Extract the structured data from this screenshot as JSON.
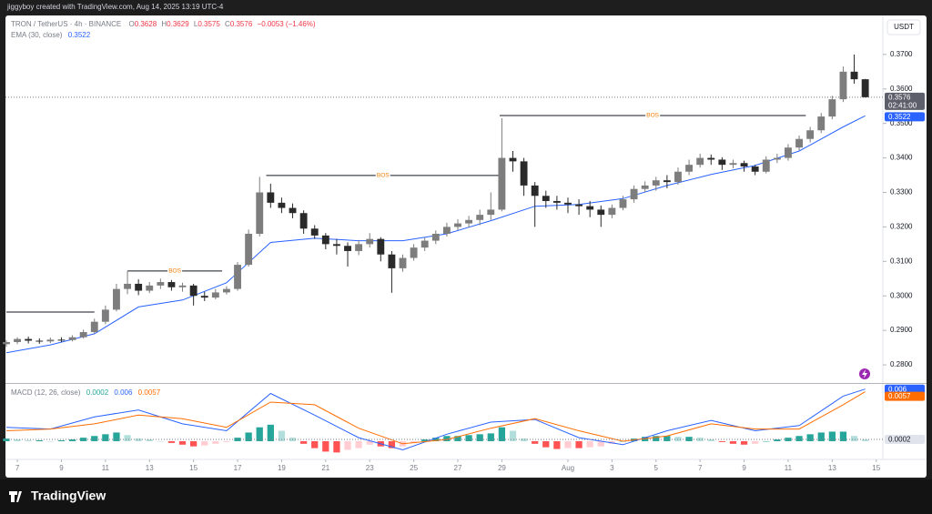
{
  "chart_data": {
    "type": "candlestick",
    "credit": "jiggyboy created with TradingView.com, Aug 14, 2025 13:19 UTC-4",
    "brand": "TradingView",
    "currency": "USDT",
    "symbol": "TRON / TetherUS · 4h · BINANCE",
    "ohlc_labels": [
      "O",
      "H",
      "L",
      "C"
    ],
    "change": "−0.0053 (−1.46%)",
    "countdown": "02:41:00",
    "up_color": "#7d7d7d",
    "down_color": "#2a2a2a",
    "xlim": [
      6.46,
      46.3
    ],
    "xticks": [
      7,
      9,
      11,
      13,
      15,
      17,
      19,
      21,
      23,
      25,
      27,
      29,
      {
        "value": 32,
        "label": "Aug"
      },
      {
        "value": 34,
        "label": "3"
      },
      {
        "value": 36,
        "label": "5"
      },
      {
        "value": 38,
        "label": "7"
      },
      {
        "value": 40,
        "label": "9"
      },
      {
        "value": 42,
        "label": "11"
      },
      {
        "value": 44,
        "label": "13"
      },
      {
        "value": 46,
        "label": "15"
      }
    ],
    "ylim": [
      0.275,
      0.3813
    ],
    "yticks": [
      {
        "value": 0.28,
        "label": "0.2800"
      },
      {
        "value": 0.29,
        "label": "0.2900"
      },
      {
        "value": 0.3,
        "label": "0.3000"
      },
      {
        "value": 0.31,
        "label": "0.3100"
      },
      {
        "value": 0.32,
        "label": "0.3200"
      },
      {
        "value": 0.33,
        "label": "0.3300"
      },
      {
        "value": 0.34,
        "label": "0.3400"
      },
      {
        "value": 0.35,
        "label": "0.3500"
      },
      {
        "value": 0.36,
        "label": "0.3600"
      },
      {
        "value": 0.37,
        "label": "0.3700"
      }
    ],
    "candles": {
      "x": [
        6.5,
        7,
        7.5,
        8,
        8.5,
        9,
        9.5,
        10,
        10.5,
        11,
        11.5,
        12,
        12.5,
        13,
        13.5,
        14,
        14.5,
        15,
        15.5,
        16,
        16.5,
        17,
        17.5,
        18,
        18.5,
        19,
        19.5,
        20,
        20.5,
        21,
        21.5,
        22,
        22.5,
        23,
        23.5,
        24,
        24.5,
        25,
        25.5,
        26,
        26.5,
        27,
        27.5,
        28,
        28.5,
        29,
        29.5,
        30,
        30.5,
        31,
        31.5,
        32,
        32.5,
        33,
        33.5,
        34,
        34.5,
        35,
        35.5,
        36,
        36.5,
        37,
        37.5,
        38,
        38.5,
        39,
        39.5,
        40,
        40.5,
        41,
        41.5,
        42,
        42.5,
        43,
        43.5,
        44,
        44.5,
        45,
        45.5
      ],
      "open": [
        0.286,
        0.2866,
        0.2875,
        0.287,
        0.2868,
        0.2873,
        0.2872,
        0.288,
        0.2895,
        0.2925,
        0.296,
        0.302,
        0.3035,
        0.3015,
        0.303,
        0.304,
        0.3025,
        0.303,
        0.3,
        0.2995,
        0.301,
        0.302,
        0.309,
        0.318,
        0.33,
        0.327,
        0.3255,
        0.324,
        0.3195,
        0.3175,
        0.315,
        0.3145,
        0.313,
        0.315,
        0.3165,
        0.312,
        0.308,
        0.311,
        0.314,
        0.316,
        0.318,
        0.32,
        0.321,
        0.322,
        0.3235,
        0.325,
        0.34,
        0.339,
        0.332,
        0.329,
        0.3275,
        0.327,
        0.3265,
        0.326,
        0.325,
        0.3235,
        0.3255,
        0.328,
        0.331,
        0.332,
        0.3335,
        0.333,
        0.336,
        0.338,
        0.34,
        0.3395,
        0.338,
        0.3385,
        0.3375,
        0.336,
        0.3395,
        0.34,
        0.343,
        0.3455,
        0.348,
        0.352,
        0.357,
        0.365,
        0.3628
      ],
      "high": [
        0.2872,
        0.288,
        0.2882,
        0.2877,
        0.2879,
        0.288,
        0.2886,
        0.2902,
        0.2934,
        0.2972,
        0.3035,
        0.3072,
        0.3048,
        0.304,
        0.305,
        0.3046,
        0.3038,
        0.3035,
        0.3012,
        0.302,
        0.3028,
        0.3098,
        0.3192,
        0.3345,
        0.3325,
        0.3285,
        0.3268,
        0.3248,
        0.3205,
        0.3182,
        0.3165,
        0.3155,
        0.3162,
        0.3182,
        0.317,
        0.313,
        0.312,
        0.315,
        0.317,
        0.319,
        0.3212,
        0.3222,
        0.3232,
        0.325,
        0.33,
        0.3515,
        0.342,
        0.34,
        0.333,
        0.3305,
        0.329,
        0.3285,
        0.328,
        0.3275,
        0.3262,
        0.3265,
        0.329,
        0.332,
        0.3332,
        0.3345,
        0.335,
        0.3372,
        0.3395,
        0.3412,
        0.341,
        0.3402,
        0.3395,
        0.3392,
        0.338,
        0.3405,
        0.3412,
        0.344,
        0.3465,
        0.349,
        0.353,
        0.358,
        0.3665,
        0.37,
        0.3629
      ],
      "low": [
        0.2852,
        0.286,
        0.2862,
        0.2861,
        0.2863,
        0.2866,
        0.2868,
        0.2876,
        0.289,
        0.2918,
        0.2955,
        0.3005,
        0.3002,
        0.3008,
        0.302,
        0.3015,
        0.3012,
        0.2972,
        0.2985,
        0.299,
        0.3004,
        0.3015,
        0.3085,
        0.3172,
        0.3255,
        0.324,
        0.3225,
        0.318,
        0.3165,
        0.3135,
        0.312,
        0.3085,
        0.3118,
        0.314,
        0.31,
        0.3009,
        0.307,
        0.3102,
        0.313,
        0.315,
        0.3172,
        0.319,
        0.3198,
        0.3205,
        0.322,
        0.3245,
        0.336,
        0.329,
        0.32,
        0.3255,
        0.325,
        0.324,
        0.3235,
        0.3228,
        0.32,
        0.3225,
        0.3248,
        0.327,
        0.33,
        0.3305,
        0.3312,
        0.3322,
        0.335,
        0.3372,
        0.338,
        0.3365,
        0.337,
        0.336,
        0.335,
        0.3355,
        0.3385,
        0.3392,
        0.3422,
        0.3445,
        0.3472,
        0.3512,
        0.3562,
        0.3615,
        0.3575
      ],
      "close": [
        0.2866,
        0.2875,
        0.287,
        0.2868,
        0.2873,
        0.2872,
        0.288,
        0.2895,
        0.2925,
        0.296,
        0.302,
        0.3035,
        0.3015,
        0.303,
        0.304,
        0.3025,
        0.303,
        0.3,
        0.2995,
        0.301,
        0.302,
        0.309,
        0.318,
        0.33,
        0.327,
        0.3255,
        0.324,
        0.3195,
        0.3175,
        0.315,
        0.3145,
        0.313,
        0.315,
        0.3165,
        0.312,
        0.308,
        0.311,
        0.314,
        0.316,
        0.318,
        0.32,
        0.321,
        0.322,
        0.3235,
        0.325,
        0.34,
        0.339,
        0.332,
        0.329,
        0.3275,
        0.327,
        0.3265,
        0.326,
        0.325,
        0.3235,
        0.3255,
        0.328,
        0.331,
        0.332,
        0.3335,
        0.333,
        0.336,
        0.338,
        0.34,
        0.3395,
        0.338,
        0.3385,
        0.3375,
        0.336,
        0.3395,
        0.34,
        0.343,
        0.3455,
        0.348,
        0.352,
        0.357,
        0.365,
        0.3628,
        0.3576
      ]
    },
    "ema": {
      "name": "EMA (30, close)",
      "color": "#2962ff",
      "x": [
        6.5,
        8.5,
        10.5,
        12.5,
        14.5,
        16.5,
        18.5,
        20.5,
        22.5,
        24.5,
        26.5,
        28.5,
        30.5,
        32.5,
        34.5,
        36.5,
        38.5,
        40.5,
        42.5,
        44.5,
        45.5
      ],
      "values": [
        0.2835,
        0.2858,
        0.289,
        0.2968,
        0.2988,
        0.3038,
        0.3155,
        0.3167,
        0.316,
        0.316,
        0.318,
        0.3218,
        0.326,
        0.3265,
        0.3282,
        0.332,
        0.3352,
        0.3378,
        0.342,
        0.349,
        0.3522
      ]
    },
    "bos_lines": [
      {
        "y": 0.2953,
        "x": [
          6.5,
          10.5
        ]
      },
      {
        "label": "BOS",
        "y": 0.3072,
        "x": [
          12.0,
          16.3
        ]
      },
      {
        "label": "BOS",
        "y": 0.3349,
        "x": [
          18.3,
          28.9
        ]
      },
      {
        "label": "BOS",
        "y": 0.3523,
        "x": [
          28.9,
          42.8
        ]
      }
    ],
    "bos_color": "#f57c00",
    "macd": {
      "title": "MACD (12, 26, close)",
      "ylim": [
        -0.0021,
        0.0066
      ],
      "x": [
        6.5,
        8.5,
        10.5,
        12.5,
        14.5,
        16.5,
        18.5,
        20.5,
        22.5,
        24.5,
        26.5,
        28.5,
        30.5,
        32.5,
        34.5,
        36.5,
        38.5,
        40.5,
        42.5,
        44.5,
        45.5
      ],
      "macd": {
        "color": "#2962ff",
        "values": [
          0.0016,
          0.0014,
          0.0028,
          0.0036,
          0.002,
          0.0012,
          0.0055,
          0.003,
          0.0004,
          -0.001,
          0.0008,
          0.0022,
          0.0025,
          0.0004,
          -0.0004,
          0.0012,
          0.0024,
          0.0012,
          0.0018,
          0.0052,
          0.006
        ]
      },
      "signal": {
        "color": "#ff6d00",
        "values": [
          0.0012,
          0.0014,
          0.002,
          0.003,
          0.0026,
          0.0016,
          0.0045,
          0.0042,
          0.0015,
          -0.0003,
          0.0002,
          0.0015,
          0.0026,
          0.0012,
          0.0,
          0.0006,
          0.002,
          0.0014,
          0.0014,
          0.0042,
          0.0057
        ]
      },
      "histogram": {
        "colors": [
          "#26a69a",
          "#b2dfdb",
          "#ff5252",
          "#ffcdd2"
        ],
        "values": [
          0.0003,
          0.0002,
          0.0001,
          0.0001,
          0.0,
          0.0001,
          0.0002,
          0.0004,
          0.0006,
          0.0008,
          0.001,
          0.0007,
          0.0003,
          0.0002,
          0.0,
          -0.0002,
          -0.0004,
          -0.0006,
          -0.0005,
          -0.0003,
          -0.0001,
          0.0004,
          0.001,
          0.0016,
          0.0019,
          0.0012,
          0.0004,
          -0.0003,
          -0.0008,
          -0.0012,
          -0.0013,
          -0.001,
          -0.0008,
          -0.0004,
          -0.0006,
          -0.0008,
          -0.0006,
          -0.0002,
          0.0002,
          0.0004,
          0.0006,
          0.0006,
          0.0007,
          0.0008,
          0.0009,
          0.0016,
          0.0012,
          0.0003,
          -0.0003,
          -0.0007,
          -0.0009,
          -0.0008,
          -0.0008,
          -0.0007,
          -0.0006,
          -0.0003,
          0.0,
          0.0003,
          0.0005,
          0.0006,
          0.0006,
          0.0005,
          0.0005,
          0.0004,
          0.0002,
          -0.0001,
          -0.0003,
          -0.0004,
          -0.0003,
          0.0,
          0.0002,
          0.0004,
          0.0006,
          0.0008,
          0.001,
          0.0011,
          0.0011,
          0.0006,
          0.0002
        ]
      }
    }
  }
}
